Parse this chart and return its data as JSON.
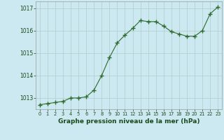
{
  "x": [
    0,
    1,
    2,
    3,
    4,
    5,
    6,
    7,
    8,
    9,
    10,
    11,
    12,
    13,
    14,
    15,
    16,
    17,
    18,
    19,
    20,
    21,
    22,
    23
  ],
  "y": [
    1012.7,
    1012.75,
    1012.8,
    1012.85,
    1013.0,
    1013.0,
    1013.05,
    1013.35,
    1014.0,
    1014.8,
    1015.45,
    1015.8,
    1016.1,
    1016.45,
    1016.4,
    1016.4,
    1016.2,
    1015.95,
    1015.85,
    1015.75,
    1015.75,
    1016.0,
    1016.75,
    1017.05
  ],
  "line_color": "#2d6a2d",
  "marker": "+",
  "marker_size": 4,
  "background_color": "#cce8f0",
  "grid_color": "#b0cccc",
  "axis_label_color": "#1a4a1a",
  "tick_color": "#1a4a1a",
  "xlabel": "Graphe pression niveau de la mer (hPa)",
  "ylim": [
    1012.5,
    1017.3
  ],
  "yticks": [
    1013,
    1014,
    1015,
    1016,
    1017
  ],
  "xticks": [
    0,
    1,
    2,
    3,
    4,
    5,
    6,
    7,
    8,
    9,
    10,
    11,
    12,
    13,
    14,
    15,
    16,
    17,
    18,
    19,
    20,
    21,
    22,
    23
  ]
}
